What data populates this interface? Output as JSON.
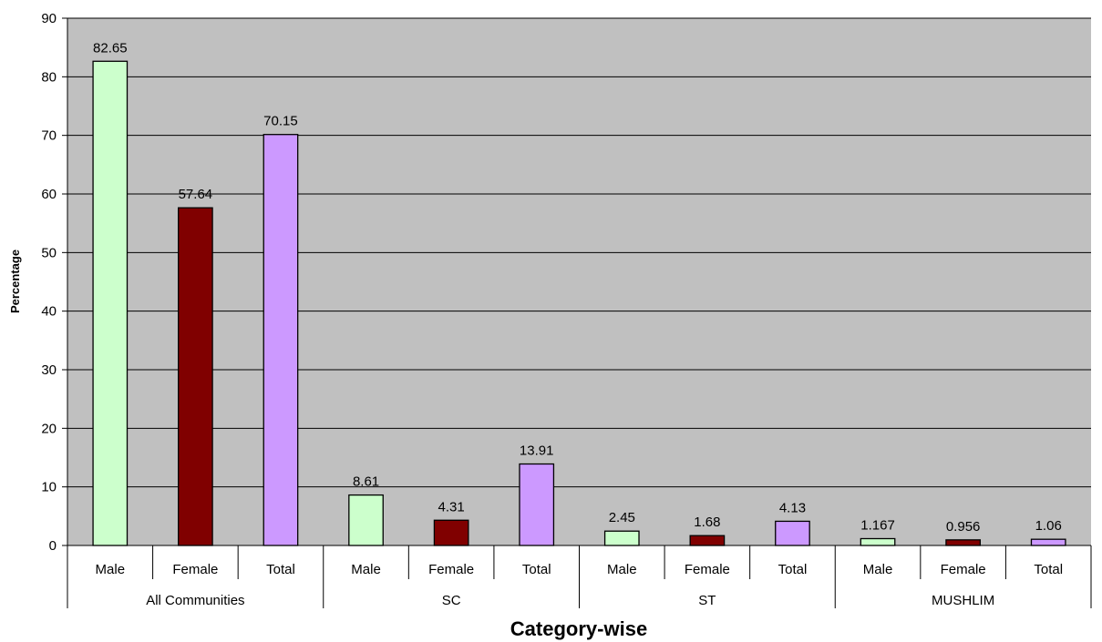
{
  "chart_data": {
    "type": "bar",
    "title": "",
    "xlabel": "Category-wise",
    "ylabel": "Percentage",
    "ylim": [
      0,
      90
    ],
    "yticks": [
      0,
      10,
      20,
      30,
      40,
      50,
      60,
      70,
      80,
      90
    ],
    "grid": true,
    "plot_background": "#C0C0C0",
    "groups": [
      {
        "name": "All Communities",
        "bars": [
          {
            "label": "Male",
            "value": 82.65,
            "value_text": "82.65",
            "color": "#CCFFCC"
          },
          {
            "label": "Female",
            "value": 57.64,
            "value_text": "57.64",
            "color": "#800000"
          },
          {
            "label": "Total",
            "value": 70.15,
            "value_text": "70.15",
            "color": "#CC99FF"
          }
        ]
      },
      {
        "name": "SC",
        "bars": [
          {
            "label": "Male",
            "value": 8.61,
            "value_text": "8.61",
            "color": "#CCFFCC"
          },
          {
            "label": "Female",
            "value": 4.31,
            "value_text": "4.31",
            "color": "#800000"
          },
          {
            "label": "Total",
            "value": 13.91,
            "value_text": "13.91",
            "color": "#CC99FF"
          }
        ]
      },
      {
        "name": "ST",
        "bars": [
          {
            "label": "Male",
            "value": 2.45,
            "value_text": "2.45",
            "color": "#CCFFCC"
          },
          {
            "label": "Female",
            "value": 1.68,
            "value_text": "1.68",
            "color": "#800000"
          },
          {
            "label": "Total",
            "value": 4.13,
            "value_text": "4.13",
            "color": "#CC99FF"
          }
        ]
      },
      {
        "name": "MUSHLIM",
        "bars": [
          {
            "label": "Male",
            "value": 1.167,
            "value_text": "1.167",
            "color": "#CCFFCC"
          },
          {
            "label": "Female",
            "value": 0.956,
            "value_text": "0.956",
            "color": "#800000"
          },
          {
            "label": "Total",
            "value": 1.06,
            "value_text": "1.06",
            "color": "#CC99FF"
          }
        ]
      }
    ]
  }
}
